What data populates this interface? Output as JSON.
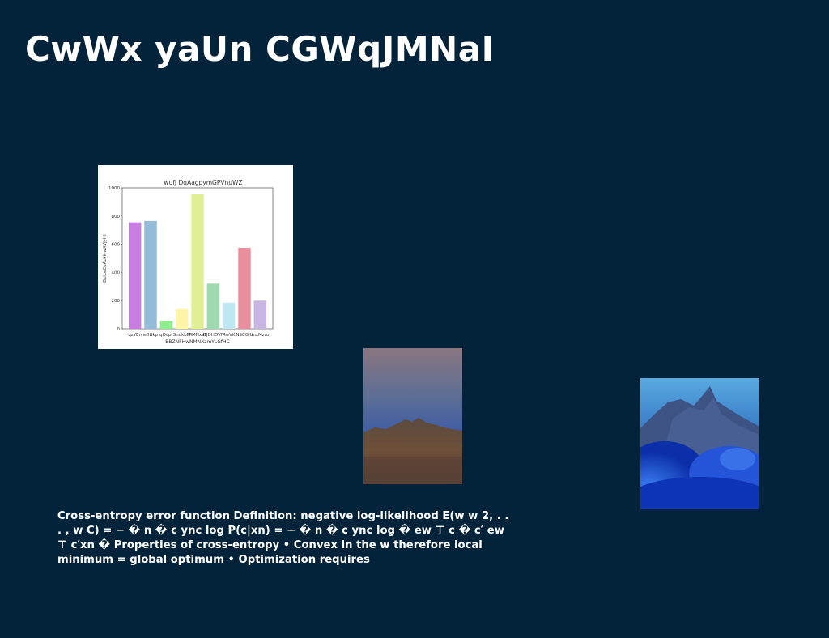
{
  "slide": {
    "title": "CwWx yaUn CGWqJMNaI",
    "body": "Cross-entropy error function Definition: negative log-likelihood E(w w 2, . . . , w C) = − � n � c ync log P(c|xn) = − � n � c ync log � ew ⊤ c � c′ ew ⊤ c′xn � Properties of cross-entropy • Convex in the w therefore local minimum = global optimum • Optimization requires"
  },
  "images": [
    {
      "name": "mountain-dusk-photo"
    },
    {
      "name": "blue-clouds-mountain-photo"
    }
  ],
  "chart_data": {
    "type": "bar",
    "title": "wufJ DqAagpymGPVnuWZ",
    "xlabel": "BBZNFHwNMNXzmYLGfHC",
    "ylabel": "DzIxeCoAzkInwXYJyHI",
    "ylim": [
      0,
      1000
    ],
    "yticks": [
      "0",
      "200",
      "400",
      "600",
      "800",
      "1000"
    ],
    "categories": [
      "qzYEn",
      "eOBkp",
      "qOcpr",
      "SnokbM",
      "MMNxaF",
      "DJDHOVF",
      "RwVK",
      "NSCGJU",
      "mxMzro"
    ],
    "values": [
      755,
      765,
      55,
      140,
      955,
      320,
      185,
      575,
      200
    ],
    "colors": [
      "#c77ee0",
      "#94bcd9",
      "#90ee90",
      "#fff5a6",
      "#e0ef95",
      "#a0d8b0",
      "#bde8f1",
      "#e88f9d",
      "#c8b6e2"
    ]
  }
}
